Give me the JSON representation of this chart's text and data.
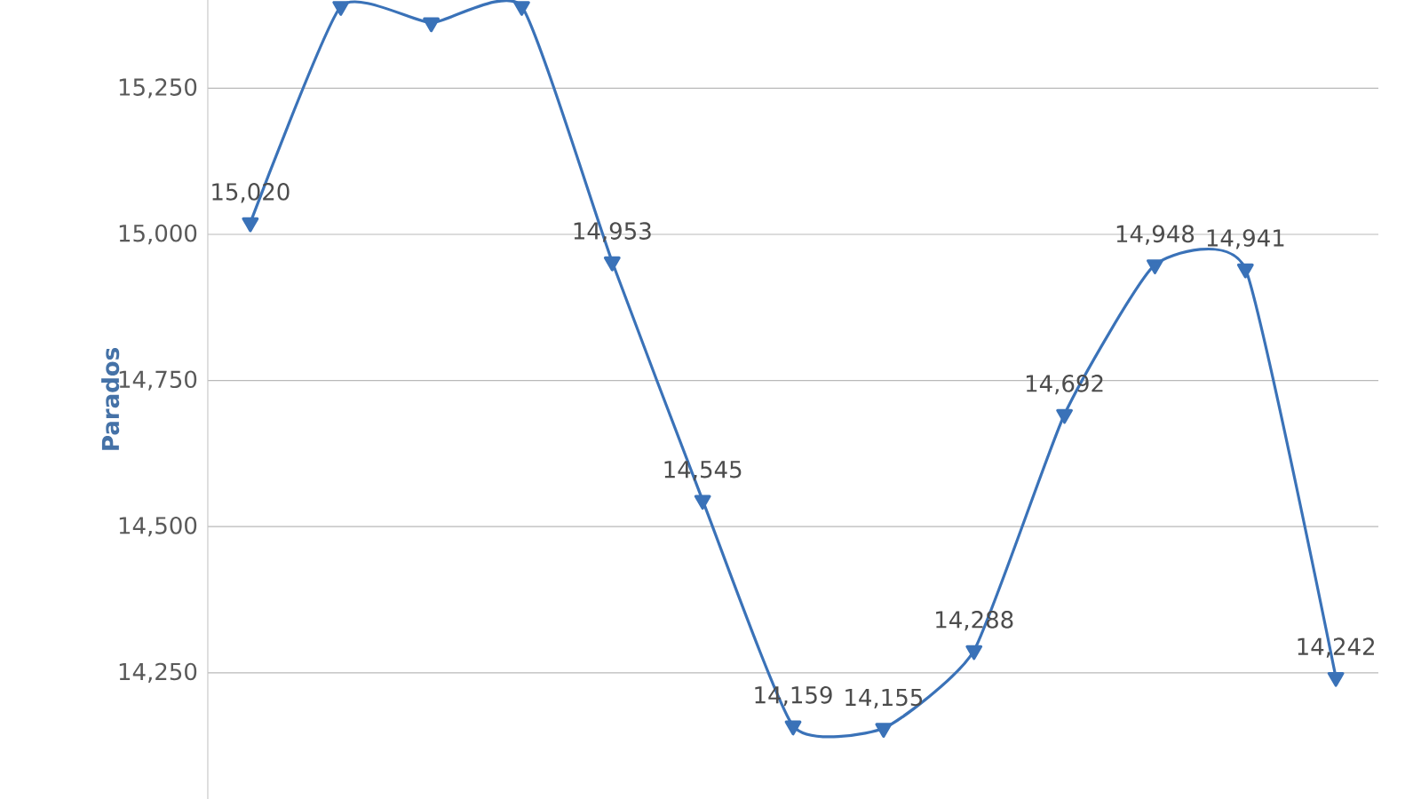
{
  "chart_data": {
    "type": "line",
    "ylabel": "Parados",
    "categories": [
      null,
      null,
      null,
      null,
      null,
      null,
      null,
      null,
      null,
      null,
      null,
      null,
      null
    ],
    "series": [
      {
        "color": "#3a72b8",
        "values": [
          15020,
          15390,
          15362,
          15390,
          14953,
          14545,
          14159,
          14155,
          14288,
          14692,
          14948,
          14941,
          14242
        ],
        "value_labels": [
          "15,020",
          null,
          null,
          null,
          "14,953",
          "14,545",
          "14,159",
          "14,155",
          "14,288",
          "14,692",
          "14,948",
          "14,941",
          "14,242"
        ]
      }
    ],
    "ylim": [
      14034,
      15401
    ],
    "yticks": [
      {
        "value": 14250,
        "label": "14,250"
      },
      {
        "value": 14500,
        "label": "14,500"
      },
      {
        "value": 14750,
        "label": "14,750"
      },
      {
        "value": 15000,
        "label": "15,000"
      },
      {
        "value": 15250,
        "label": "15,250"
      }
    ],
    "grid": "y",
    "marker": "triangle",
    "line_style": "solid",
    "tick_labels": "y"
  }
}
